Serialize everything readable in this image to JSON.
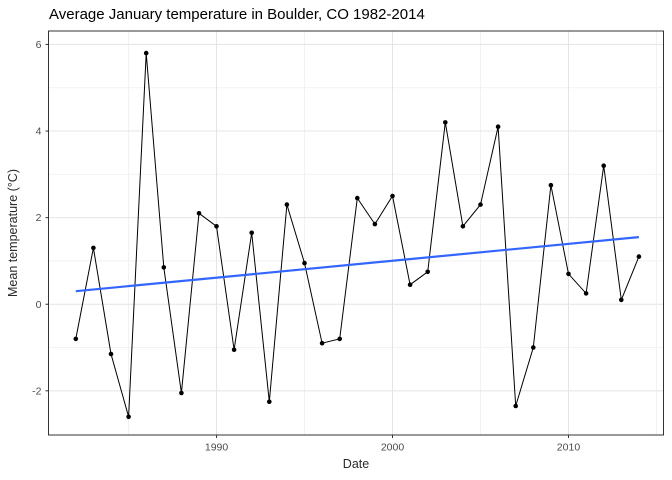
{
  "chart_data": {
    "type": "line",
    "title": "Average January temperature in Boulder, CO 1982-2014",
    "xlabel": "Date",
    "ylabel": "Mean temperature (°C)",
    "x": [
      1982,
      1983,
      1984,
      1985,
      1986,
      1987,
      1988,
      1989,
      1990,
      1991,
      1992,
      1993,
      1994,
      1995,
      1996,
      1997,
      1998,
      1999,
      2000,
      2001,
      2002,
      2003,
      2004,
      2005,
      2006,
      2007,
      2008,
      2009,
      2010,
      2011,
      2012,
      2013,
      2014
    ],
    "values": [
      -0.8,
      1.3,
      -1.15,
      -2.6,
      5.8,
      0.85,
      -2.05,
      2.1,
      1.8,
      -1.05,
      1.65,
      -2.25,
      2.3,
      0.95,
      -0.9,
      -0.8,
      2.45,
      1.85,
      2.5,
      0.45,
      0.75,
      4.2,
      1.8,
      2.3,
      4.1,
      -2.35,
      -1.0,
      2.75,
      0.7,
      0.25,
      3.2,
      0.1,
      1.1
    ],
    "trend_line": {
      "type": "linear",
      "x": [
        1982,
        2014
      ],
      "y": [
        0.3,
        1.55
      ],
      "color": "#3366FF"
    },
    "axes": {
      "x_tick_labels": [
        "1990",
        "2000",
        "2010"
      ],
      "x_ticks": [
        1990,
        2000,
        2010
      ],
      "x_minor_ticks": [
        1985,
        1995,
        2005,
        2015
      ],
      "y_tick_labels": [
        "-2",
        "0",
        "2",
        "4",
        "6"
      ],
      "y_ticks": [
        -2,
        0,
        2,
        4,
        6
      ],
      "y_minor_ticks": [
        -1,
        1,
        3,
        5
      ],
      "x_range": [
        1980.45,
        2015.4
      ],
      "y_range": [
        -3.02,
        6.31
      ],
      "grid": true,
      "legend": "none"
    },
    "colors": {
      "point": "#000000",
      "line": "#000000",
      "trend": "#3366FF",
      "major_grid": "#e4e4e4",
      "minor_grid": "#f2f2f2",
      "panel_border": "#333333",
      "tick_mark": "#333333",
      "tick_text": "#4d4d4d",
      "background": "#ffffff"
    }
  }
}
